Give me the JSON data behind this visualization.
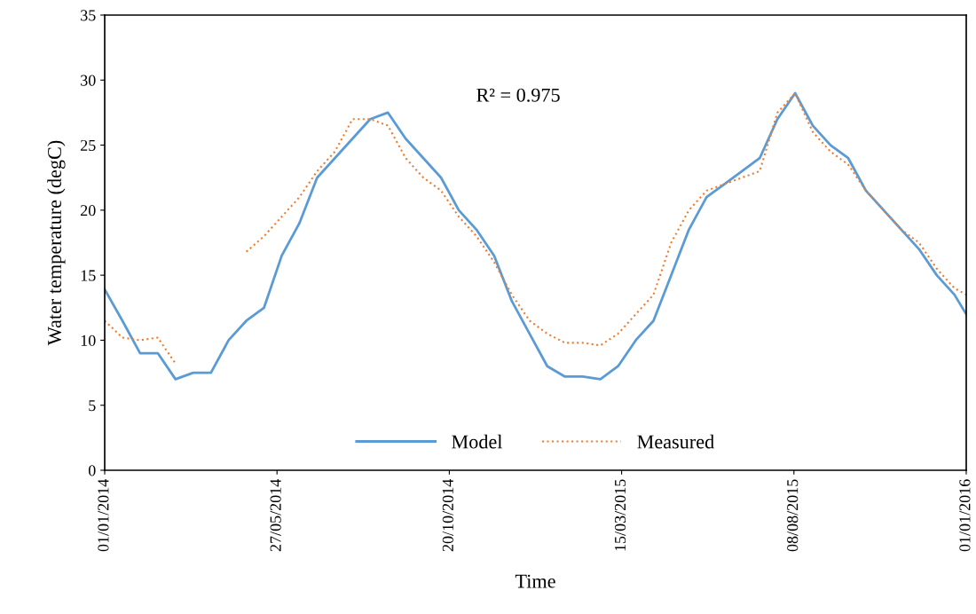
{
  "chart_data": {
    "type": "line",
    "xlabel": "Time",
    "ylabel": "Water temperature (degC)",
    "annotations": [
      "R² = 0.975"
    ],
    "x": [
      "2014-01-01",
      "2014-01-16",
      "2014-01-31",
      "2014-02-15",
      "2014-03-02",
      "2014-03-17",
      "2014-04-01",
      "2014-04-16",
      "2014-05-01",
      "2014-05-16",
      "2014-05-31",
      "2014-06-15",
      "2014-06-30",
      "2014-07-15",
      "2014-07-30",
      "2014-08-14",
      "2014-08-29",
      "2014-09-13",
      "2014-09-28",
      "2014-10-13",
      "2014-10-28",
      "2014-11-12",
      "2014-11-27",
      "2014-12-12",
      "2014-12-27",
      "2015-01-11",
      "2015-01-26",
      "2015-02-10",
      "2015-02-25",
      "2015-03-12",
      "2015-03-27",
      "2015-04-11",
      "2015-04-26",
      "2015-05-11",
      "2015-05-26",
      "2015-06-10",
      "2015-06-25",
      "2015-07-10",
      "2015-07-25",
      "2015-08-09",
      "2015-08-24",
      "2015-09-08",
      "2015-09-23",
      "2015-10-08",
      "2015-10-23",
      "2015-11-07",
      "2015-11-22",
      "2015-12-07",
      "2015-12-22",
      "2016-01-01"
    ],
    "series": [
      {
        "name": "Model",
        "color": "#5b9bd5",
        "line_style": "solid",
        "values": [
          13.9,
          11.5,
          9.0,
          9.0,
          7.0,
          7.5,
          7.5,
          10,
          11.5,
          12.5,
          16.5,
          19,
          22.5,
          24,
          25.5,
          27,
          27.5,
          25.5,
          24,
          22.5,
          20,
          18.5,
          16.5,
          13,
          10.5,
          8,
          7.2,
          7.2,
          7.0,
          8.0,
          10,
          11.5,
          15,
          18.5,
          21,
          22,
          23,
          24,
          27,
          29,
          26.5,
          25,
          24,
          21.5,
          20,
          18.5,
          17,
          15,
          13.5,
          12
        ]
      },
      {
        "name": "Measured",
        "color": "#ed7d31",
        "line_style": "dotted",
        "values": [
          11.5,
          10.2,
          10.0,
          10.2,
          8.2,
          null,
          null,
          null,
          16.8,
          18,
          19.5,
          21,
          23,
          24.5,
          27,
          27,
          26.5,
          24,
          22.5,
          21.5,
          19.5,
          18,
          16,
          13.5,
          11.5,
          10.5,
          9.8,
          9.8,
          9.6,
          10.5,
          12,
          13.5,
          17.5,
          20,
          21.5,
          22,
          22.5,
          23,
          27.5,
          29,
          26,
          24.5,
          23.5,
          21.5,
          20,
          18.5,
          17.5,
          15.5,
          14,
          13.5
        ]
      }
    ],
    "xlim": [
      "2014-01-01",
      "2016-01-01"
    ],
    "xticks": [
      {
        "value": "2014-01-01",
        "label": "01/01/2014"
      },
      {
        "value": "2014-05-27",
        "label": "27/05/2014"
      },
      {
        "value": "2014-10-20",
        "label": "20/10/2014"
      },
      {
        "value": "2015-03-15",
        "label": "15/03/2015"
      },
      {
        "value": "2015-08-08",
        "label": "08/08/2015"
      },
      {
        "value": "2016-01-01",
        "label": "01/01/2016"
      }
    ],
    "ylim": [
      0,
      35
    ],
    "yticks": [
      0,
      5,
      10,
      15,
      20,
      25,
      30,
      35
    ],
    "legend": "bottom",
    "grid": false,
    "marker": "none"
  }
}
